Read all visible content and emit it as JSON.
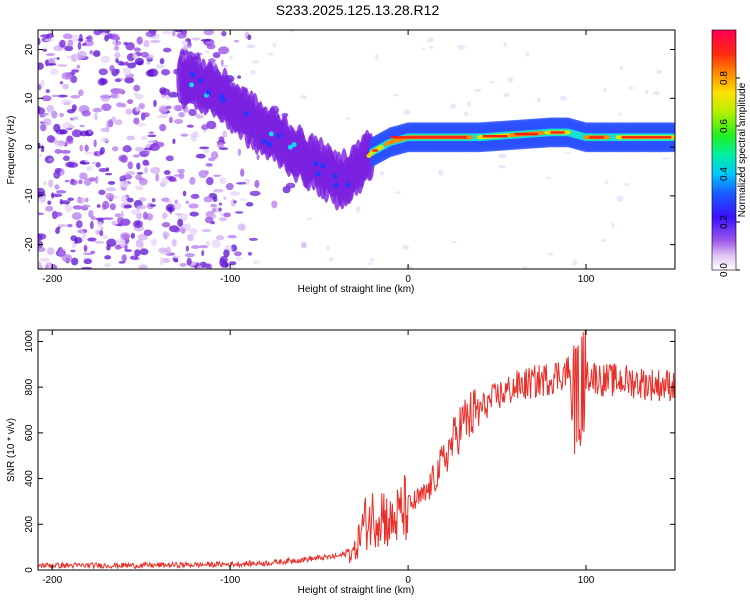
{
  "title": "S233.2025.125.13.28.R12",
  "chart_data": [
    {
      "type": "heatmap",
      "xlabel": "Height of straight line (km)",
      "ylabel": "Frequency (Hz)",
      "xlim": [
        -208,
        150
      ],
      "ylim": [
        -25,
        24
      ],
      "xticks": [
        -200,
        -100,
        0,
        100
      ],
      "yticks": [
        -20,
        -10,
        0,
        10,
        20
      ],
      "colorbar": {
        "label": "Normalized spectral amplitude",
        "range": [
          0.0,
          1.0
        ],
        "ticks": [
          0.0,
          0.2,
          0.4,
          0.6,
          0.8
        ]
      },
      "ridge": {
        "x": [
          -125,
          -110,
          -100,
          -90,
          -80,
          -70,
          -60,
          -50,
          -40,
          -30,
          -20,
          -10,
          0,
          20,
          40,
          60,
          80,
          90,
          100,
          120,
          150
        ],
        "y": [
          14,
          12,
          9,
          6,
          3,
          1,
          -2,
          -4,
          -7,
          -5,
          -1,
          1,
          2,
          2,
          2,
          2.5,
          3,
          3,
          2,
          2,
          2
        ]
      }
    },
    {
      "type": "line",
      "xlabel": "Height of straight line (km)",
      "ylabel": "SNR (10 * v/v)",
      "xlim": [
        -208,
        150
      ],
      "ylim": [
        0,
        1050
      ],
      "xticks": [
        -200,
        -100,
        0,
        100
      ],
      "yticks": [
        0,
        200,
        400,
        600,
        800,
        1000
      ],
      "series": [
        {
          "color": "#e8302a",
          "x": [
            -208,
            -150,
            -100,
            -80,
            -60,
            -40,
            -30,
            -25,
            -20,
            -15,
            -10,
            -5,
            0,
            10,
            20,
            30,
            40,
            50,
            60,
            70,
            80,
            90,
            95,
            100,
            110,
            120,
            130,
            140,
            150
          ],
          "y": [
            20,
            20,
            25,
            30,
            45,
            60,
            80,
            200,
            230,
            260,
            200,
            240,
            280,
            330,
            480,
            640,
            700,
            760,
            800,
            820,
            840,
            870,
            720,
            860,
            830,
            830,
            820,
            810,
            810
          ]
        }
      ]
    }
  ]
}
